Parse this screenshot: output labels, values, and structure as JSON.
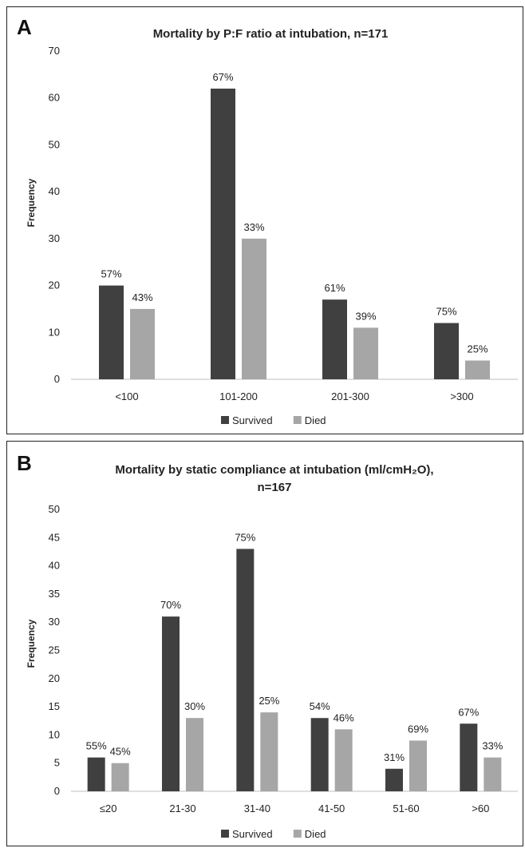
{
  "chart_data": [
    {
      "type": "bar",
      "panel": "A",
      "title": "Mortality by P:F ratio at intubation, n=171",
      "ylabel": "Frequency",
      "xlabel": "",
      "ylim": [
        0,
        70
      ],
      "yticks": [
        "0",
        "10",
        "20",
        "30",
        "40",
        "50",
        "60",
        "70"
      ],
      "grid": false,
      "legend_position": "bottom",
      "categories": [
        "<100",
        "101-200",
        "201-300",
        ">300"
      ],
      "series": [
        {
          "name": "Survived",
          "color": "#404040",
          "values": [
            20,
            62,
            17,
            12
          ],
          "labels": [
            "57%",
            "67%",
            "61%",
            "75%"
          ]
        },
        {
          "name": "Died",
          "color": "#a6a6a6",
          "values": [
            15,
            30,
            11,
            4
          ],
          "labels": [
            "43%",
            "33%",
            "39%",
            "25%"
          ]
        }
      ]
    },
    {
      "type": "bar",
      "panel": "B",
      "title": "Mortality by static compliance at intubation (ml/cmH₂O),",
      "subtitle": "n=167",
      "ylabel": "Frequency",
      "xlabel": "",
      "ylim": [
        0,
        50
      ],
      "yticks": [
        "0",
        "5",
        "10",
        "15",
        "20",
        "25",
        "30",
        "35",
        "40",
        "45",
        "50"
      ],
      "grid": false,
      "legend_position": "bottom",
      "categories": [
        "≤20",
        "21-30",
        "31-40",
        "41-50",
        "51-60",
        ">60"
      ],
      "series": [
        {
          "name": "Survived",
          "color": "#404040",
          "values": [
            6,
            31,
            43,
            13,
            4,
            12
          ],
          "labels": [
            "55%",
            "70%",
            "75%",
            "54%",
            "31%",
            "67%"
          ]
        },
        {
          "name": "Died",
          "color": "#a6a6a6",
          "values": [
            5,
            13,
            14,
            11,
            9,
            6
          ],
          "labels": [
            "45%",
            "30%",
            "25%",
            "46%",
            "69%",
            "33%"
          ]
        }
      ]
    }
  ]
}
